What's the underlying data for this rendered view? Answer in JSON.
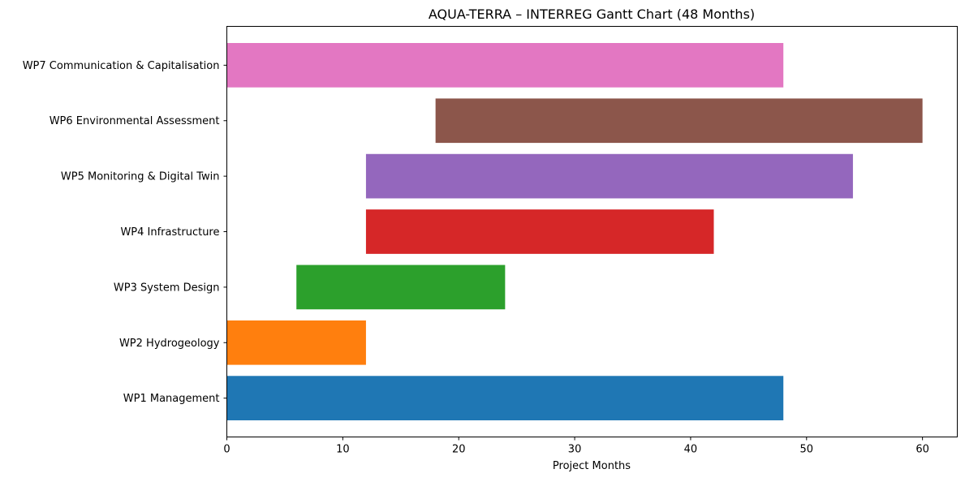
{
  "chart_data": {
    "type": "bar",
    "orientation": "horizontal",
    "title": "AQUA-TERRA – INTERREG Gantt Chart (48 Months)",
    "xlabel": "Project Months",
    "ylabel": "",
    "xlim": [
      0,
      63
    ],
    "x_ticks": [
      0,
      10,
      20,
      30,
      40,
      50,
      60
    ],
    "grid": false,
    "categories": [
      "WP1 Management",
      "WP2 Hydrogeology",
      "WP3 System Design",
      "WP4 Infrastructure",
      "WP5 Monitoring & Digital Twin",
      "WP6 Environmental Assessment",
      "WP7 Communication & Capitalisation"
    ],
    "bars": [
      {
        "category": "WP1 Management",
        "start": 0,
        "end": 48,
        "color": "#1f77b4"
      },
      {
        "category": "WP2 Hydrogeology",
        "start": 0,
        "end": 12,
        "color": "#ff7f0e"
      },
      {
        "category": "WP3 System Design",
        "start": 6,
        "end": 24,
        "color": "#2ca02c"
      },
      {
        "category": "WP4 Infrastructure",
        "start": 12,
        "end": 42,
        "color": "#d62728"
      },
      {
        "category": "WP5 Monitoring & Digital Twin",
        "start": 12,
        "end": 54,
        "color": "#9467bd"
      },
      {
        "category": "WP6 Environmental Assessment",
        "start": 18,
        "end": 60,
        "color": "#8c564b"
      },
      {
        "category": "WP7 Communication & Capitalisation",
        "start": 0,
        "end": 48,
        "color": "#e377c2"
      }
    ]
  }
}
